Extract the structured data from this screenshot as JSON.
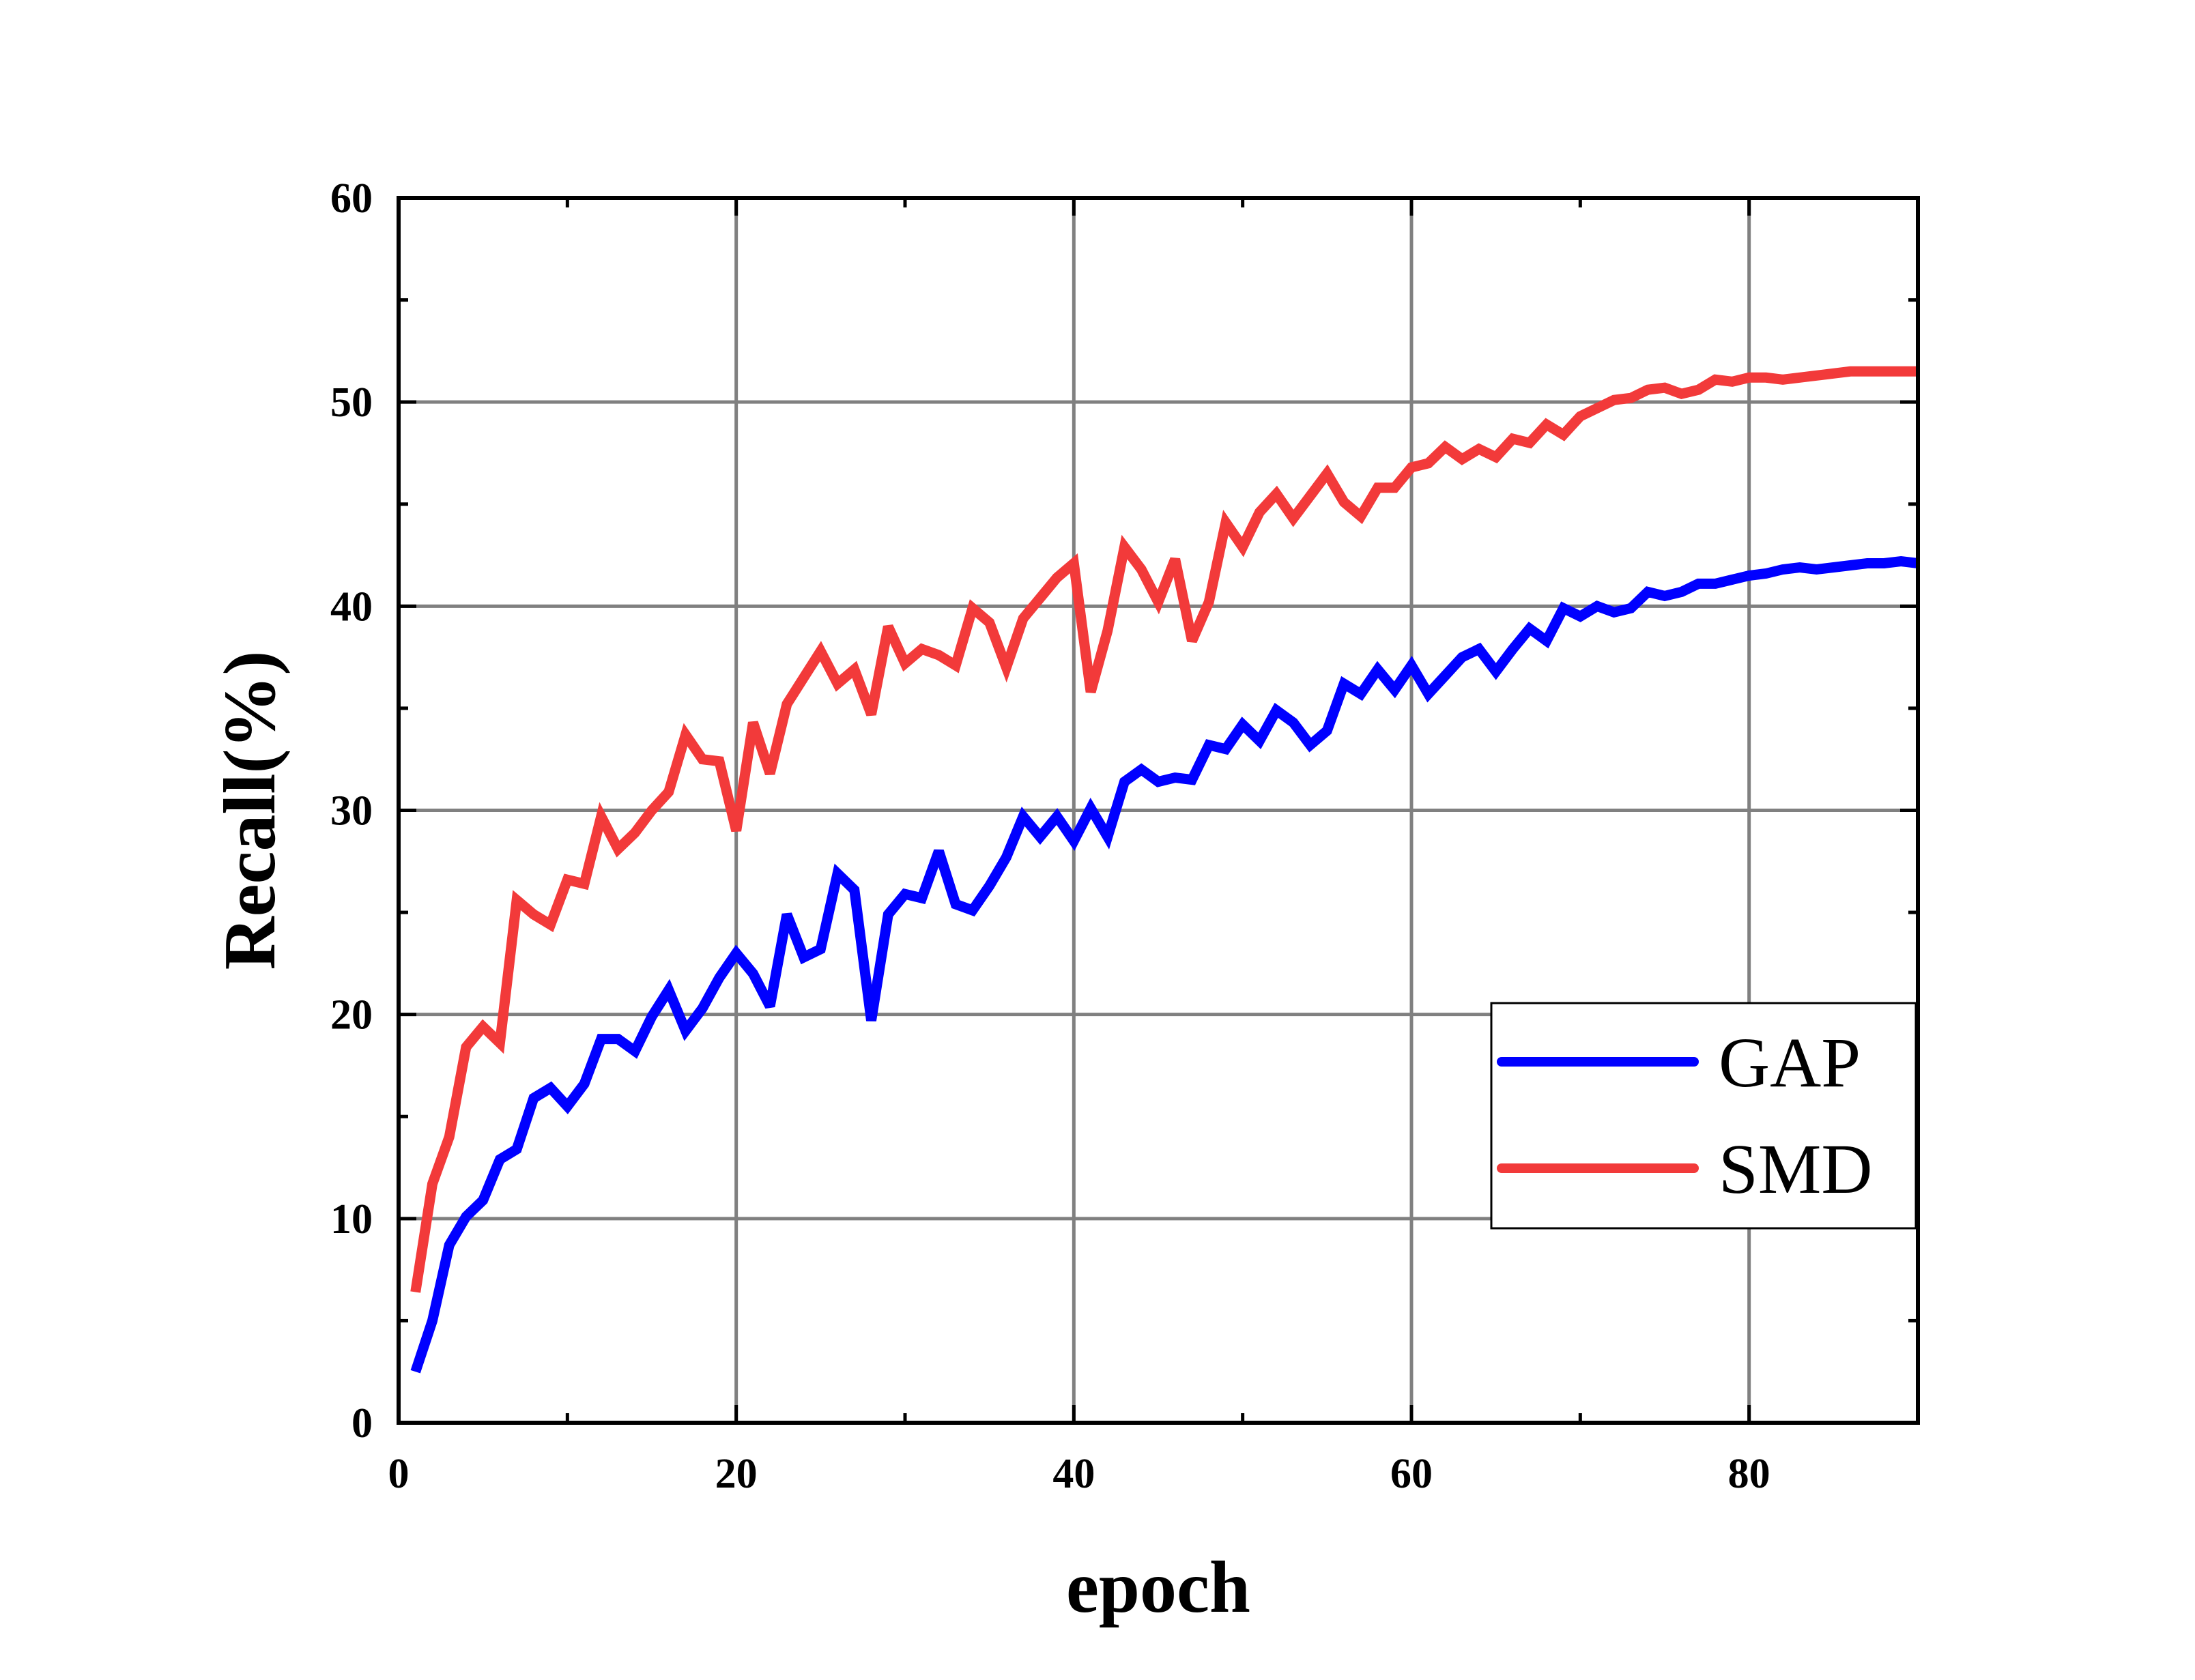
{
  "chart_data": {
    "type": "line",
    "title": "",
    "xlabel": "epoch",
    "ylabel": "Recall(%)",
    "xlim": [
      0,
      90
    ],
    "ylim": [
      0,
      60
    ],
    "x_ticks": [
      0,
      20,
      40,
      60,
      80
    ],
    "y_ticks": [
      0,
      10,
      20,
      30,
      40,
      50,
      60
    ],
    "grid": true,
    "legend_position": "lower-right",
    "x": [
      1,
      2,
      3,
      4,
      5,
      6,
      7,
      8,
      9,
      10,
      11,
      12,
      13,
      14,
      15,
      16,
      17,
      18,
      19,
      20,
      21,
      22,
      23,
      24,
      25,
      26,
      27,
      28,
      29,
      30,
      31,
      32,
      33,
      34,
      35,
      36,
      37,
      38,
      39,
      40,
      41,
      42,
      43,
      44,
      45,
      46,
      47,
      48,
      49,
      50,
      51,
      52,
      53,
      54,
      55,
      56,
      57,
      58,
      59,
      60,
      61,
      62,
      63,
      64,
      65,
      66,
      67,
      68,
      69,
      70,
      71,
      72,
      73,
      74,
      75,
      76,
      77,
      78,
      79,
      80,
      81,
      82,
      83,
      84,
      85,
      86,
      87,
      88,
      89,
      90
    ],
    "series": [
      {
        "name": "GAP",
        "color": "#0000ff",
        "values": [
          2.5,
          5.0,
          8.7,
          10.1,
          10.9,
          12.9,
          13.4,
          15.9,
          16.4,
          15.5,
          16.6,
          18.8,
          18.8,
          18.2,
          19.9,
          21.2,
          19.2,
          20.3,
          21.8,
          23.0,
          22.0,
          20.4,
          24.9,
          22.8,
          23.2,
          26.9,
          26.1,
          19.7,
          24.9,
          25.9,
          25.7,
          28.0,
          25.4,
          25.1,
          26.3,
          27.7,
          29.7,
          28.7,
          29.7,
          28.5,
          30.1,
          28.7,
          31.4,
          32.0,
          31.4,
          31.6,
          31.5,
          33.2,
          33.0,
          34.2,
          33.4,
          34.9,
          34.3,
          33.2,
          33.9,
          36.2,
          35.7,
          36.9,
          35.9,
          37.1,
          35.7,
          36.6,
          37.5,
          37.9,
          36.8,
          37.9,
          38.9,
          38.3,
          39.9,
          39.5,
          40.0,
          39.7,
          39.9,
          40.7,
          40.5,
          40.7,
          41.1,
          41.1,
          41.3,
          41.5,
          41.6,
          41.8,
          41.9,
          41.8,
          41.9,
          42.0,
          42.1,
          42.1,
          42.2,
          42.1
        ]
      },
      {
        "name": "SMD",
        "color": "#f23a3a",
        "values": [
          6.4,
          11.7,
          14.0,
          18.4,
          19.4,
          18.6,
          25.6,
          24.9,
          24.4,
          26.6,
          26.4,
          29.7,
          28.1,
          28.9,
          30.0,
          30.9,
          33.7,
          32.5,
          32.4,
          29.0,
          34.3,
          31.8,
          35.2,
          36.5,
          37.8,
          36.2,
          36.9,
          34.7,
          39.0,
          37.2,
          37.9,
          37.6,
          37.1,
          39.9,
          39.2,
          37.0,
          39.4,
          40.4,
          41.4,
          42.1,
          35.8,
          38.8,
          42.9,
          41.8,
          40.2,
          42.3,
          38.3,
          40.2,
          44.1,
          42.9,
          44.6,
          45.5,
          44.3,
          45.4,
          46.5,
          45.1,
          44.4,
          45.8,
          45.8,
          46.8,
          47.0,
          47.8,
          47.2,
          47.7,
          47.3,
          48.2,
          48.0,
          48.9,
          48.4,
          49.3,
          49.7,
          50.1,
          50.2,
          50.6,
          50.7,
          50.4,
          50.6,
          51.1,
          51.0,
          51.2,
          51.2,
          51.1,
          51.2,
          51.3,
          51.4,
          51.5,
          51.5,
          51.5,
          51.5,
          51.5
        ]
      }
    ]
  }
}
